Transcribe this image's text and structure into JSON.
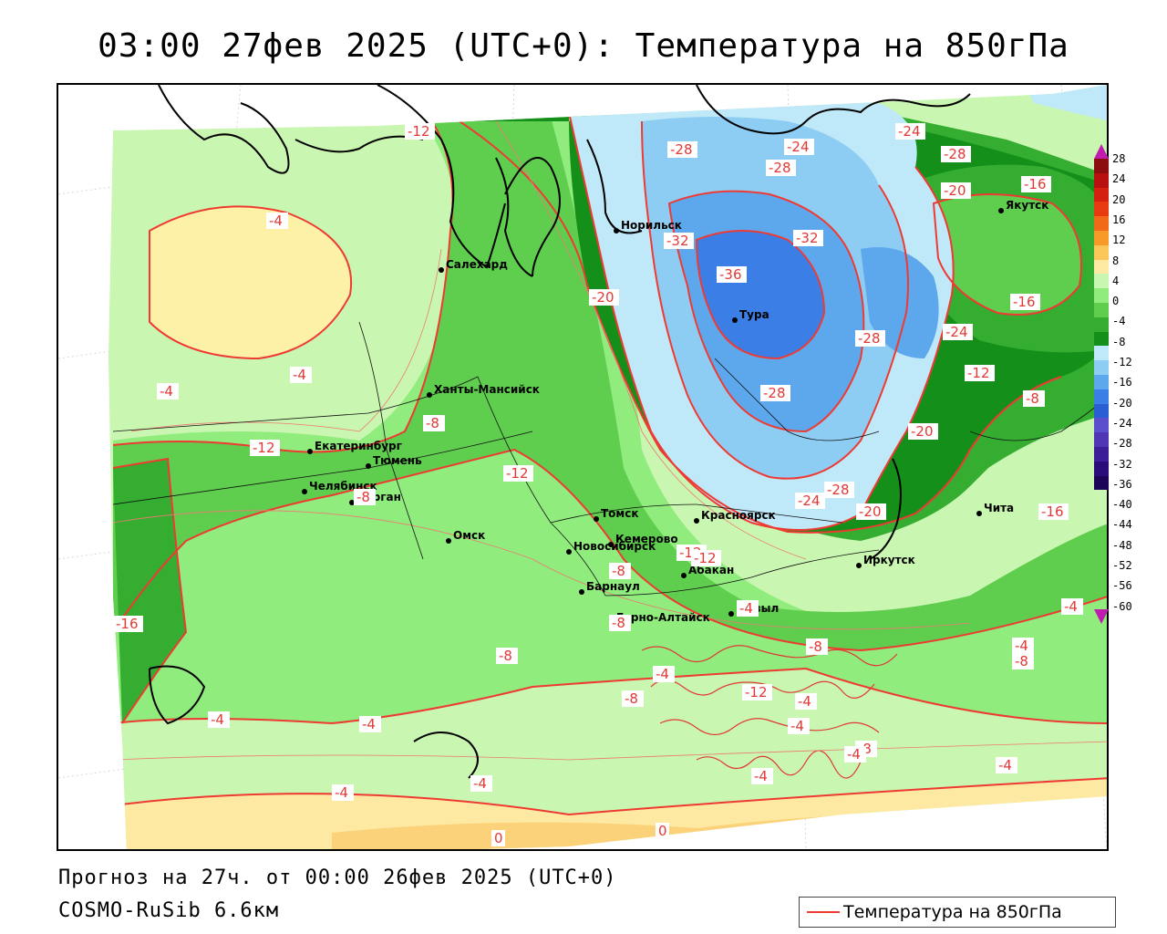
{
  "title": "03:00 27фев 2025 (UTC+0): Температура на 850гПа",
  "forecast_line": "Прогноз на 27ч. от 00:00 26фев 2025 (UTC+0)",
  "model_line": "COSMO-RuSib 6.6км",
  "legend_label": "Температура на 850гПа",
  "colorbar": {
    "labels": [
      "28",
      "24",
      "20",
      "16",
      "12",
      "8",
      "4",
      "0",
      "-4",
      "-8",
      "-12",
      "-16",
      "-20",
      "-24",
      "-28",
      "-32",
      "-36",
      "-40",
      "-44",
      "-48",
      "-52",
      "-56",
      "-60"
    ],
    "colors": [
      "#8c0d0d",
      "#b81010",
      "#d42010",
      "#e83a10",
      "#f06a1a",
      "#f79a2a",
      "#fbc65a",
      "#fde9a2",
      "#c9f6b0",
      "#8fec7d",
      "#5fcd4e",
      "#34ad31",
      "#148f1a",
      "#bfe9f8",
      "#8ecdf3",
      "#5da8ec",
      "#3b7fe6",
      "#2a5fd3",
      "#5b4fce",
      "#5036b5",
      "#3c1e99",
      "#2a0b7a",
      "#1c0458"
    ],
    "top_color": "#c21bb0",
    "bottom_color": "#c21bb0"
  },
  "cities": [
    {
      "name": "Норильск"
    },
    {
      "name": "Тура"
    },
    {
      "name": "Якутск"
    },
    {
      "name": "Салехард"
    },
    {
      "name": "Ханты-Мансийск"
    },
    {
      "name": "Екатеринбург"
    },
    {
      "name": "Тюмень"
    },
    {
      "name": "Челябинск"
    },
    {
      "name": "Курган"
    },
    {
      "name": "Омск"
    },
    {
      "name": "Новосибирск"
    },
    {
      "name": "Томск"
    },
    {
      "name": "Кемерово"
    },
    {
      "name": "Красноярск"
    },
    {
      "name": "Абакан"
    },
    {
      "name": "Барнаул"
    },
    {
      "name": "Горно-Алтайск"
    },
    {
      "name": "Кызыл"
    },
    {
      "name": "Иркутск"
    },
    {
      "name": "Чита"
    }
  ],
  "isotherm_labels": [
    "-12",
    "-28",
    "-24",
    "-28",
    "-24",
    "-28",
    "-20",
    "-16",
    "-4",
    "-32",
    "-32",
    "-36",
    "-20",
    "-16",
    "-28",
    "-24",
    "-4",
    "-4",
    "-12",
    "-8",
    "-28",
    "-12",
    "-12",
    "-20",
    "-8",
    "-12",
    "-24",
    "-28",
    "-20",
    "-16",
    "-8",
    "-12",
    "-8",
    "-16",
    "-4",
    "-8",
    "-8",
    "-8",
    "-4",
    "-12",
    "-4",
    "-8",
    "-4",
    "-4",
    "-8",
    "-4",
    "-8",
    "-4",
    "-4",
    "-4",
    "-4",
    "-4",
    "-4",
    "-4",
    "0",
    "0"
  ]
}
